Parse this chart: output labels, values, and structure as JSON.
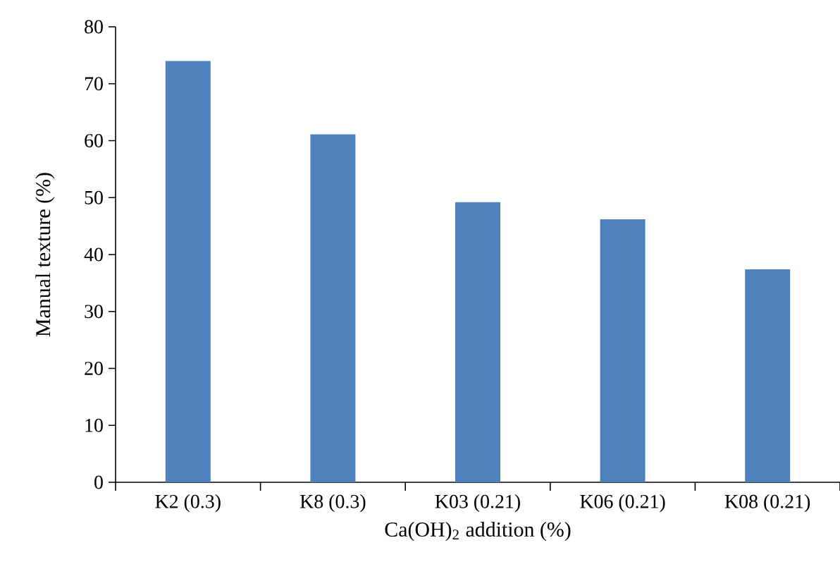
{
  "chart_data": {
    "type": "bar",
    "xlabel": "Ca(OH)$_{2}$ addition (%)",
    "ylabel": "Manual texture (%)",
    "categories": [
      "K2 (0.3)",
      "K8 (0.3)",
      "K03 (0.21)",
      "K06 (0.21)",
      "K08 (0.21)"
    ],
    "values": [
      74,
      61.1,
      49.2,
      46.2,
      37.4
    ],
    "color": "#4f81bd",
    "ylim": [
      0,
      80
    ],
    "yticks": [
      0,
      10,
      20,
      30,
      40,
      50,
      60,
      70,
      80
    ],
    "grid": false
  }
}
